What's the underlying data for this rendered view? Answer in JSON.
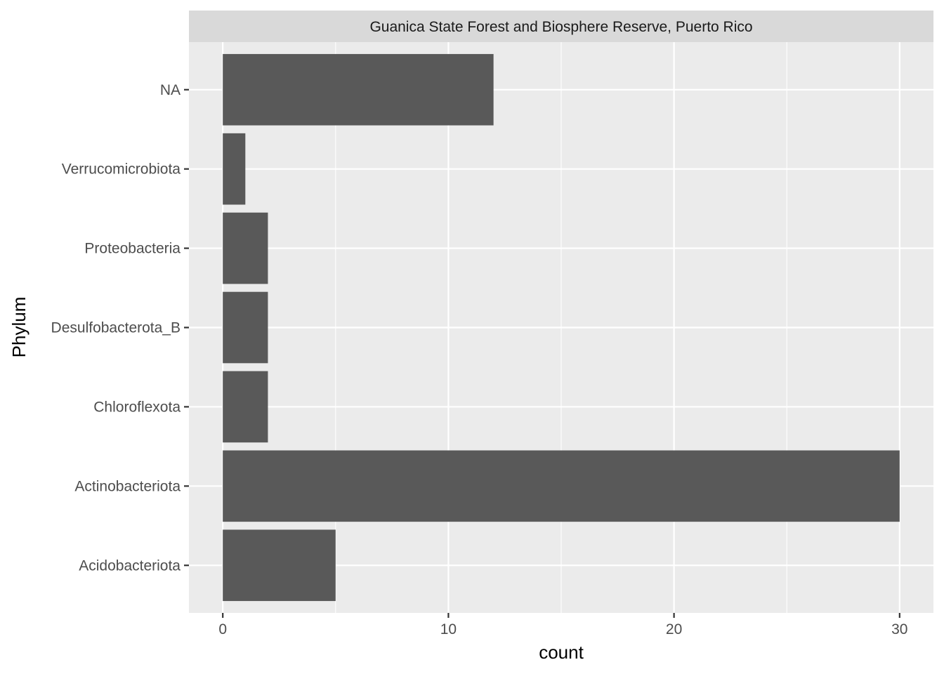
{
  "chart_data": {
    "type": "bar",
    "orientation": "horizontal",
    "facet_label": "Guanica State Forest and Biosphere Reserve, Puerto Rico",
    "categories": [
      "Acidobacteriota",
      "Actinobacteriota",
      "Chloroflexota",
      "Desulfobacterota_B",
      "Proteobacteria",
      "Verrucomicrobiota",
      "NA"
    ],
    "values": [
      5,
      30,
      2,
      2,
      2,
      1,
      12
    ],
    "xlabel": "count",
    "ylabel": "Phylum",
    "xlim": [
      -1.5,
      31.5
    ],
    "x_ticks": [
      0,
      10,
      20,
      30
    ],
    "x_minor_ticks": [
      5,
      15,
      25
    ],
    "grid": true,
    "colors": {
      "bar": "#595959",
      "panel": "#ebebeb",
      "strip": "#d9d9d9",
      "grid": "#ffffff"
    }
  }
}
